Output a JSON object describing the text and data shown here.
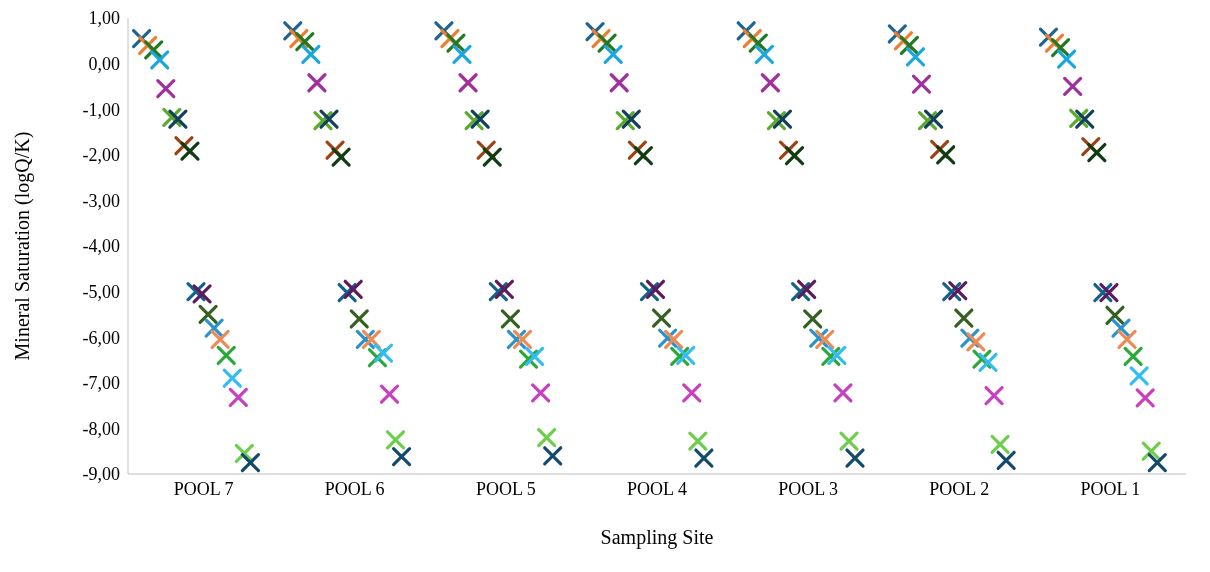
{
  "chart_data": {
    "type": "scatter",
    "xlabel": "Sampling Site",
    "ylabel": "Mineral Saturation (logQ/K)",
    "marker": "cross",
    "categories": [
      "POOL 7",
      "POOL 6",
      "POOL 5",
      "POOL 4",
      "POOL 3",
      "POOL 2",
      "POOL 1"
    ],
    "ylim": [
      -9,
      1
    ],
    "yticks": [
      {
        "value": 1,
        "label": "1,00"
      },
      {
        "value": 0,
        "label": "0,00"
      },
      {
        "value": -1,
        "label": "-1,00"
      },
      {
        "value": -2,
        "label": "-2,00"
      },
      {
        "value": -3,
        "label": "-3,00"
      },
      {
        "value": -4,
        "label": "-4,00"
      },
      {
        "value": -5,
        "label": "-5,00"
      },
      {
        "value": -6,
        "label": "-6,00"
      },
      {
        "value": -7,
        "label": "-7,00"
      },
      {
        "value": -8,
        "label": "-8,00"
      },
      {
        "value": -9,
        "label": "-9,00"
      }
    ],
    "series": [
      {
        "color": "#1f6391",
        "values": [
          0.55,
          0.72,
          0.72,
          0.7,
          0.72,
          0.65,
          0.58
        ]
      },
      {
        "color": "#ed7d31",
        "values": [
          0.4,
          0.55,
          0.55,
          0.55,
          0.55,
          0.5,
          0.45
        ]
      },
      {
        "color": "#217a21",
        "values": [
          0.3,
          0.48,
          0.45,
          0.45,
          0.45,
          0.4,
          0.35
        ]
      },
      {
        "color": "#1aa7e0",
        "values": [
          0.08,
          0.2,
          0.2,
          0.2,
          0.2,
          0.15,
          0.1
        ]
      },
      {
        "color": "#a0309e",
        "values": [
          -0.55,
          -0.42,
          -0.42,
          -0.42,
          -0.42,
          -0.45,
          -0.5
        ]
      },
      {
        "color": "#5aab2c",
        "values": [
          -1.18,
          -1.25,
          -1.25,
          -1.25,
          -1.25,
          -1.25,
          -1.2
        ]
      },
      {
        "color": "#123f5c",
        "values": [
          -1.22,
          -1.22,
          -1.22,
          -1.22,
          -1.22,
          -1.22,
          -1.22
        ]
      },
      {
        "color": "#9e4213",
        "values": [
          -1.8,
          -1.9,
          -1.9,
          -1.9,
          -1.9,
          -1.88,
          -1.82
        ]
      },
      {
        "color": "#0f3d13",
        "values": [
          -1.92,
          -2.05,
          -2.05,
          -2.02,
          -2.02,
          -2,
          -1.95
        ]
      },
      {
        "color": "#12628a",
        "values": [
          -5,
          -5.02,
          -5,
          -5,
          -5,
          -5,
          -5.02
        ]
      },
      {
        "color": "#5e1a5e",
        "values": [
          -5.05,
          -4.95,
          -4.95,
          -4.95,
          -4.95,
          -4.98,
          -5.02
        ]
      },
      {
        "color": "#356022",
        "values": [
          -5.5,
          -5.6,
          -5.6,
          -5.58,
          -5.6,
          -5.58,
          -5.52
        ]
      },
      {
        "color": "#2a93cc",
        "values": [
          -5.8,
          -6.05,
          -6.05,
          -6.02,
          -6.02,
          -6.02,
          -5.8
        ]
      },
      {
        "color": "#f08a55",
        "values": [
          -6.05,
          -6.05,
          -6.05,
          -6.05,
          -6.05,
          -6.1,
          -6.05
        ]
      },
      {
        "color": "#2aa83a",
        "values": [
          -6.4,
          -6.45,
          -6.48,
          -6.42,
          -6.42,
          -6.48,
          -6.42
        ]
      },
      {
        "color": "#33bdf0",
        "values": [
          -6.9,
          -6.35,
          -6.42,
          -6.4,
          -6.4,
          -6.55,
          -6.85
        ]
      },
      {
        "color": "#c83fc0",
        "values": [
          -7.32,
          -7.25,
          -7.22,
          -7.22,
          -7.22,
          -7.28,
          -7.33
        ]
      },
      {
        "color": "#6cce4a",
        "values": [
          -8.55,
          -8.25,
          -8.2,
          -8.28,
          -8.28,
          -8.35,
          -8.5
        ]
      },
      {
        "color": "#134a6b",
        "values": [
          -8.75,
          -8.62,
          -8.6,
          -8.65,
          -8.65,
          -8.7,
          -8.75
        ]
      }
    ]
  }
}
